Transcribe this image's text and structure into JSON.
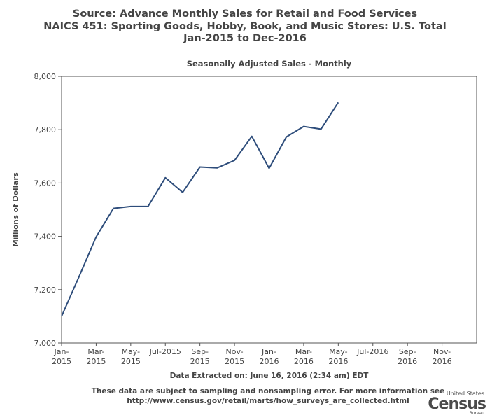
{
  "title_lines": [
    "Source: Advance Monthly Sales for Retail and Food Services",
    "NAICS 451: Sporting Goods, Hobby, Book, and Music Stores: U.S. Total",
    "Jan-2015 to Dec-2016"
  ],
  "subtitle": "Seasonally Adjusted Sales - Monthly",
  "extracted_note": "Data Extracted on: June 16, 2016 (2:34 am) EDT",
  "disclaimer_lines": [
    "These data are subject to sampling and nonsampling error. For more information see",
    "http://www.census.gov/retail/marts/how_surveys_are_collected.html"
  ],
  "logo": {
    "top": "United States",
    "main": "Census",
    "bottom": "Bureau"
  },
  "chart_data": {
    "type": "line",
    "title": "Seasonally Adjusted Sales - Monthly",
    "xlabel": "",
    "ylabel": "Millions of Dollars",
    "ylim": [
      7000,
      8000
    ],
    "yticks": [
      7000,
      7200,
      7400,
      7600,
      7800,
      8000
    ],
    "ytick_labels": [
      "7,000",
      "7,200",
      "7,400",
      "7,600",
      "7,800",
      "8,000"
    ],
    "x_months": 24,
    "xticks": [
      {
        "index": 0,
        "label": [
          "Jan-",
          "2015"
        ]
      },
      {
        "index": 2,
        "label": [
          "Mar-",
          "2015"
        ]
      },
      {
        "index": 4,
        "label": [
          "May-",
          "2015"
        ]
      },
      {
        "index": 6,
        "label": [
          "Jul-2015"
        ]
      },
      {
        "index": 8,
        "label": [
          "Sep-",
          "2015"
        ]
      },
      {
        "index": 10,
        "label": [
          "Nov-",
          "2015"
        ]
      },
      {
        "index": 12,
        "label": [
          "Jan-",
          "2016"
        ]
      },
      {
        "index": 14,
        "label": [
          "Mar-",
          "2016"
        ]
      },
      {
        "index": 16,
        "label": [
          "May-",
          "2016"
        ]
      },
      {
        "index": 18,
        "label": [
          "Jul-2016"
        ]
      },
      {
        "index": 20,
        "label": [
          "Sep-",
          "2016"
        ]
      },
      {
        "index": 22,
        "label": [
          "Nov-",
          "2016"
        ]
      }
    ],
    "x": [
      "Jan-2015",
      "Feb-2015",
      "Mar-2015",
      "Apr-2015",
      "May-2015",
      "Jun-2015",
      "Jul-2015",
      "Aug-2015",
      "Sep-2015",
      "Oct-2015",
      "Nov-2015",
      "Dec-2015",
      "Jan-2016",
      "Feb-2016",
      "Mar-2016",
      "Apr-2016",
      "May-2016"
    ],
    "series": [
      {
        "values": [
          7100,
          7247,
          7398,
          7505,
          7512,
          7512,
          7620,
          7565,
          7660,
          7657,
          7685,
          7775,
          7655,
          7773,
          7812,
          7802,
          7902
        ],
        "color": "#2e4d7b"
      }
    ]
  }
}
